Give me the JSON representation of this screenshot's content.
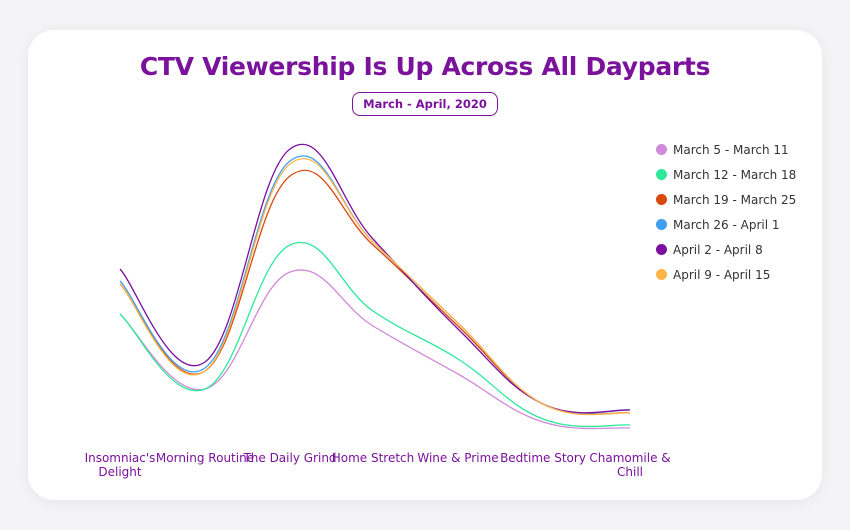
{
  "chart_data": {
    "type": "line",
    "title": "CTV Viewership Is Up Across All Dayparts",
    "subtitle": "March - April, 2020",
    "categories": [
      "Insomniac's Delight",
      "Morning Routine",
      "The Daily Grind",
      "Home Stretch",
      "Wine & Prime",
      "Bedtime Story",
      "Chamomile & Chill"
    ],
    "xlabel": "",
    "ylabel": "",
    "y_axis_shown": false,
    "grid": false,
    "legend_position": "right",
    "series": [
      {
        "name": "March 5 - March 11",
        "color": "#d08ad8",
        "values": [
          42,
          17,
          56,
          38,
          22,
          6,
          4
        ]
      },
      {
        "name": "March 12 - March 18",
        "color": "#2de89a",
        "values": [
          42,
          17,
          65,
          43,
          27,
          7,
          5
        ]
      },
      {
        "name": "March 19 - March 25",
        "color": "#d9480f",
        "values": [
          52,
          23,
          88,
          65,
          38,
          12,
          9
        ]
      },
      {
        "name": "March 26 - April 1",
        "color": "#3fa0f0",
        "values": [
          53,
          24,
          93,
          66,
          39,
          12,
          10
        ]
      },
      {
        "name": "April 2 - April 8",
        "color": "#7a0fa0",
        "values": [
          57,
          26,
          97,
          67,
          37,
          12,
          10
        ]
      },
      {
        "name": "April 9 - April 15",
        "color": "#ffb545",
        "values": [
          52,
          23,
          92,
          66,
          39,
          12,
          9
        ]
      }
    ]
  }
}
